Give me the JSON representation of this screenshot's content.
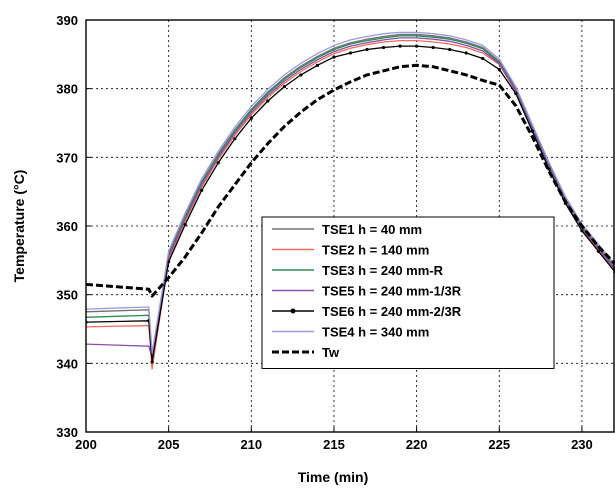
{
  "chart_data": {
    "type": "line",
    "title": "",
    "xlabel": "Time (min)",
    "ylabel": "Temperature (°C)",
    "xlim": [
      200,
      232
    ],
    "ylim": [
      330,
      390
    ],
    "xticks": [
      200,
      205,
      210,
      215,
      220,
      225,
      230
    ],
    "yticks": [
      330,
      340,
      350,
      360,
      370,
      380,
      390
    ],
    "grid": true,
    "legend_position": "lower-right",
    "x": [
      200,
      203.8,
      204,
      205,
      206,
      207,
      208,
      209,
      210,
      211,
      212,
      213,
      214,
      215,
      216,
      217,
      218,
      219,
      220,
      221,
      222,
      223,
      224,
      225,
      226,
      227,
      228,
      229,
      230,
      231,
      232
    ],
    "series": [
      {
        "name": "TSE1 h = 40 mm",
        "color": "#707070",
        "dash": "solid",
        "values": [
          347.5,
          347.8,
          341.0,
          356.0,
          361.5,
          366.5,
          370.5,
          374.0,
          377.0,
          379.5,
          381.6,
          383.3,
          384.7,
          385.9,
          386.7,
          387.2,
          387.6,
          387.9,
          387.9,
          387.7,
          387.4,
          386.8,
          386.0,
          384.0,
          380.0,
          374.5,
          369.0,
          364.0,
          360.0,
          357.0,
          354.0
        ]
      },
      {
        "name": "TSE2 h = 140 mm",
        "color": "#f26b5b",
        "dash": "solid",
        "values": [
          345.3,
          345.5,
          339.2,
          355.2,
          360.7,
          365.7,
          369.7,
          373.2,
          376.2,
          378.7,
          380.8,
          382.5,
          383.9,
          385.1,
          385.9,
          386.4,
          386.8,
          387.0,
          387.0,
          386.8,
          386.5,
          386.0,
          385.2,
          383.5,
          379.6,
          374.0,
          368.5,
          363.5,
          359.5,
          356.5,
          353.5
        ]
      },
      {
        "name": "TSE3 h = 240 mm-R",
        "color": "#2e8b57",
        "dash": "solid",
        "values": [
          346.7,
          347.0,
          340.5,
          355.8,
          361.3,
          366.3,
          370.3,
          373.8,
          376.8,
          379.3,
          381.4,
          383.1,
          384.5,
          385.7,
          386.5,
          387.0,
          387.4,
          387.7,
          387.7,
          387.5,
          387.2,
          386.6,
          385.8,
          383.8,
          379.8,
          374.3,
          368.8,
          363.8,
          359.8,
          356.8,
          353.8
        ]
      },
      {
        "name": "TSE5 h = 240 mm-1/3R",
        "color": "#8a4fa8",
        "dash": "solid",
        "values": [
          342.8,
          342.5,
          340.8,
          355.5,
          361.0,
          366.0,
          370.0,
          373.5,
          376.5,
          379.0,
          381.1,
          382.8,
          384.2,
          385.4,
          386.2,
          386.7,
          387.1,
          387.4,
          387.4,
          387.2,
          386.9,
          386.3,
          385.5,
          383.6,
          379.7,
          374.2,
          368.7,
          363.7,
          359.7,
          356.7,
          353.7
        ]
      },
      {
        "name": "TSE6 h = 240 mm-2/3R",
        "color": "#000000",
        "dash": "solid",
        "values": [
          346.0,
          346.2,
          340.2,
          354.8,
          360.2,
          365.2,
          369.2,
          372.7,
          375.7,
          378.2,
          380.3,
          382.0,
          383.4,
          384.6,
          385.2,
          385.7,
          386.0,
          386.2,
          386.2,
          386.0,
          385.7,
          385.2,
          384.4,
          382.8,
          379.3,
          373.8,
          368.3,
          363.3,
          359.3,
          356.3,
          353.3
        ]
      },
      {
        "name": "TSE4 h = 340 mm",
        "color": "#9a9ae0",
        "dash": "solid",
        "values": [
          347.9,
          348.2,
          341.5,
          356.4,
          361.9,
          366.9,
          370.9,
          374.4,
          377.4,
          379.9,
          382.0,
          383.7,
          385.1,
          386.3,
          387.1,
          387.6,
          388.0,
          388.2,
          388.2,
          388.0,
          387.7,
          387.1,
          386.3,
          384.3,
          380.3,
          374.8,
          369.3,
          364.3,
          360.3,
          357.3,
          354.3
        ]
      },
      {
        "name": "Tw",
        "color": "#000000",
        "dash": "dashed",
        "values": [
          351.5,
          350.8,
          349.8,
          352.5,
          355.5,
          359.0,
          362.8,
          366.0,
          369.2,
          372.0,
          374.5,
          376.6,
          378.4,
          379.8,
          381.0,
          382.0,
          382.6,
          383.2,
          383.4,
          383.2,
          382.6,
          382.0,
          381.2,
          380.5,
          377.5,
          373.0,
          368.0,
          363.5,
          360.0,
          357.0,
          354.5
        ]
      }
    ]
  }
}
